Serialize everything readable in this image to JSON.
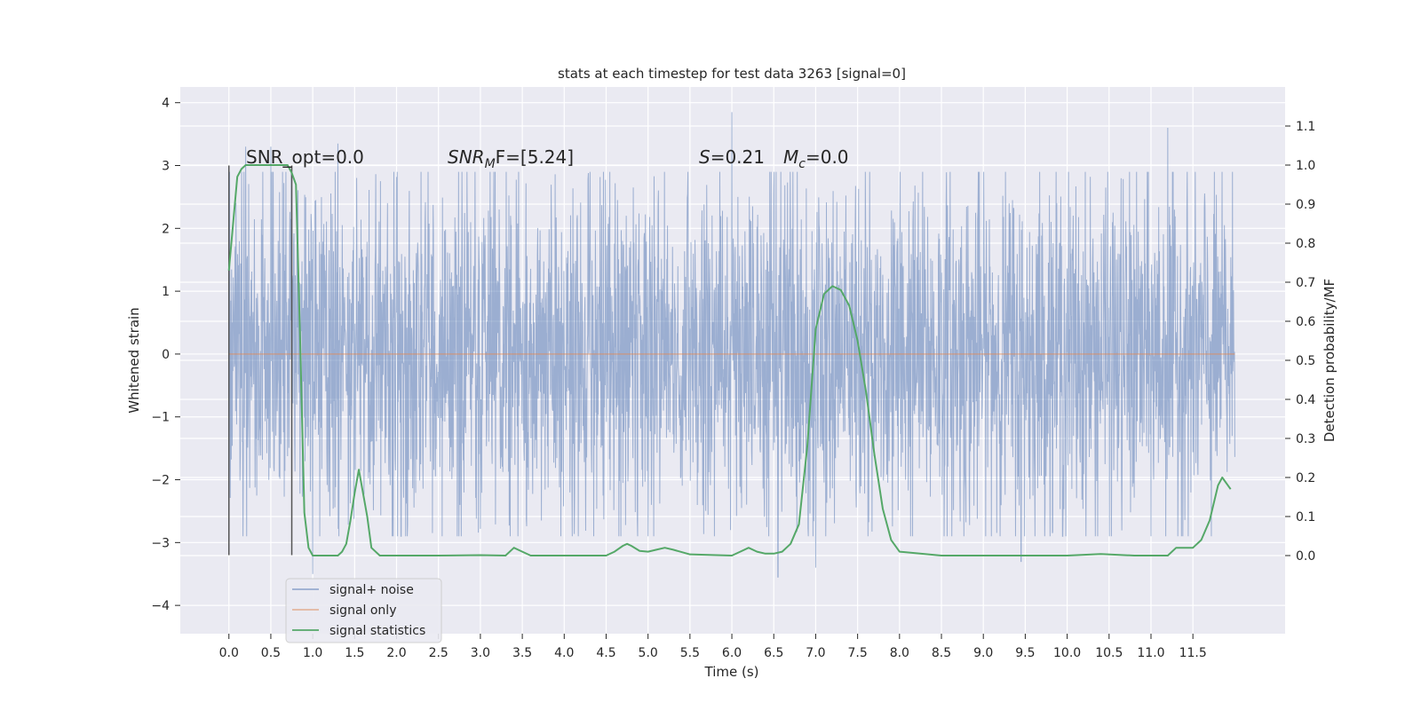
{
  "chart_data": {
    "type": "line",
    "title": "stats at each timestep for test data 3263 [signal=0]",
    "xlabel": "Time (s)",
    "ylabel_left": "Whitened strain",
    "ylabel_right": "Detection probability/MF",
    "xlim": [
      -0.58,
      12.6
    ],
    "ylim_left": [
      -4.45,
      4.25
    ],
    "ylim_right": [
      -0.2,
      1.2
    ],
    "x_ticks": [
      "0.0",
      "0.5",
      "1.0",
      "1.5",
      "2.0",
      "2.5",
      "3.0",
      "3.5",
      "4.0",
      "4.5",
      "5.0",
      "5.5",
      "6.0",
      "6.5",
      "7.0",
      "7.5",
      "8.0",
      "8.5",
      "9.0",
      "9.5",
      "10.0",
      "10.5",
      "11.0",
      "11.5"
    ],
    "y_ticks_left": [
      "4",
      "3",
      "2",
      "1",
      "0",
      "−1",
      "−2",
      "−3",
      "−4"
    ],
    "y_ticks_right": [
      "1.1",
      "1.0",
      "0.9",
      "0.8",
      "0.7",
      "0.6",
      "0.5",
      "0.4",
      "0.3",
      "0.2",
      "0.1",
      "0.0"
    ],
    "grid": true,
    "legend_position": "lower-left",
    "background_color": "#eaeaf2",
    "annotations": {
      "snr_opt": "SNR_opt=0.0",
      "snr_mf_sym": "SNR",
      "snr_mf_sub": "M",
      "snr_mf_tail": "F=[5.24]",
      "s_sym": "S",
      "s_val": "=0.21",
      "mc_sym": "M",
      "mc_sub": "c",
      "mc_val": "=0.0"
    },
    "window_markers": {
      "x": [
        0.0,
        0.75
      ],
      "y_range": [
        -3.2,
        3.0
      ],
      "color": "#555555"
    },
    "series": [
      {
        "name": "signal+ noise",
        "color": "#4c72b0",
        "axis": "left",
        "description_values": {
          "x_range": [
            0.0,
            12.0
          ],
          "typical_envelope": [
            -1.8,
            1.8
          ],
          "spikes": [
            [
              0.2,
              3.3
            ],
            [
              0.5,
              3.3
            ],
            [
              1.0,
              -3.5
            ],
            [
              1.3,
              3.35
            ],
            [
              6.0,
              3.85
            ],
            [
              6.55,
              -3.55
            ],
            [
              7.0,
              -3.4
            ],
            [
              9.45,
              -3.3
            ],
            [
              11.2,
              3.6
            ]
          ]
        }
      },
      {
        "name": "signal only",
        "color": "#dd8452",
        "axis": "left",
        "x": [
          0.0,
          12.0
        ],
        "y": [
          0.0,
          0.0
        ]
      },
      {
        "name": "signal statistics",
        "color": "#55a868",
        "axis": "right",
        "x": [
          0.0,
          0.05,
          0.1,
          0.15,
          0.2,
          0.3,
          0.4,
          0.5,
          0.6,
          0.7,
          0.75,
          0.8,
          0.85,
          0.9,
          0.95,
          1.0,
          1.1,
          1.2,
          1.3,
          1.35,
          1.4,
          1.45,
          1.5,
          1.55,
          1.6,
          1.65,
          1.7,
          1.8,
          2.0,
          2.5,
          3.0,
          3.3,
          3.4,
          3.5,
          3.6,
          4.0,
          4.5,
          4.6,
          4.7,
          4.75,
          4.8,
          4.9,
          5.0,
          5.1,
          5.2,
          5.3,
          5.5,
          6.0,
          6.1,
          6.2,
          6.3,
          6.4,
          6.5,
          6.6,
          6.7,
          6.8,
          6.9,
          7.0,
          7.1,
          7.2,
          7.3,
          7.4,
          7.5,
          7.6,
          7.7,
          7.8,
          7.9,
          8.0,
          8.5,
          9.0,
          9.5,
          10.0,
          10.4,
          10.8,
          11.0,
          11.2,
          11.3,
          11.4,
          11.5,
          11.6,
          11.7,
          11.8,
          11.85,
          11.95
        ],
        "y": [
          0.73,
          0.85,
          0.97,
          0.99,
          1.0,
          1.0,
          1.0,
          1.0,
          1.0,
          1.0,
          0.98,
          0.95,
          0.55,
          0.11,
          0.02,
          0.0,
          0.0,
          0.0,
          0.0,
          0.01,
          0.03,
          0.09,
          0.16,
          0.22,
          0.16,
          0.1,
          0.02,
          0.0,
          0.0,
          0.0,
          0.001,
          0.0,
          0.02,
          0.01,
          0.0,
          0.0,
          0.0,
          0.01,
          0.025,
          0.03,
          0.025,
          0.012,
          0.01,
          0.015,
          0.02,
          0.015,
          0.003,
          0.0,
          0.01,
          0.02,
          0.01,
          0.005,
          0.005,
          0.01,
          0.03,
          0.08,
          0.28,
          0.58,
          0.67,
          0.69,
          0.68,
          0.64,
          0.55,
          0.42,
          0.26,
          0.12,
          0.04,
          0.01,
          0.0,
          0.0,
          0.0,
          0.0,
          0.004,
          0.0,
          0.0,
          0.0,
          0.02,
          0.02,
          0.02,
          0.04,
          0.09,
          0.18,
          0.2,
          0.17
        ]
      }
    ]
  }
}
